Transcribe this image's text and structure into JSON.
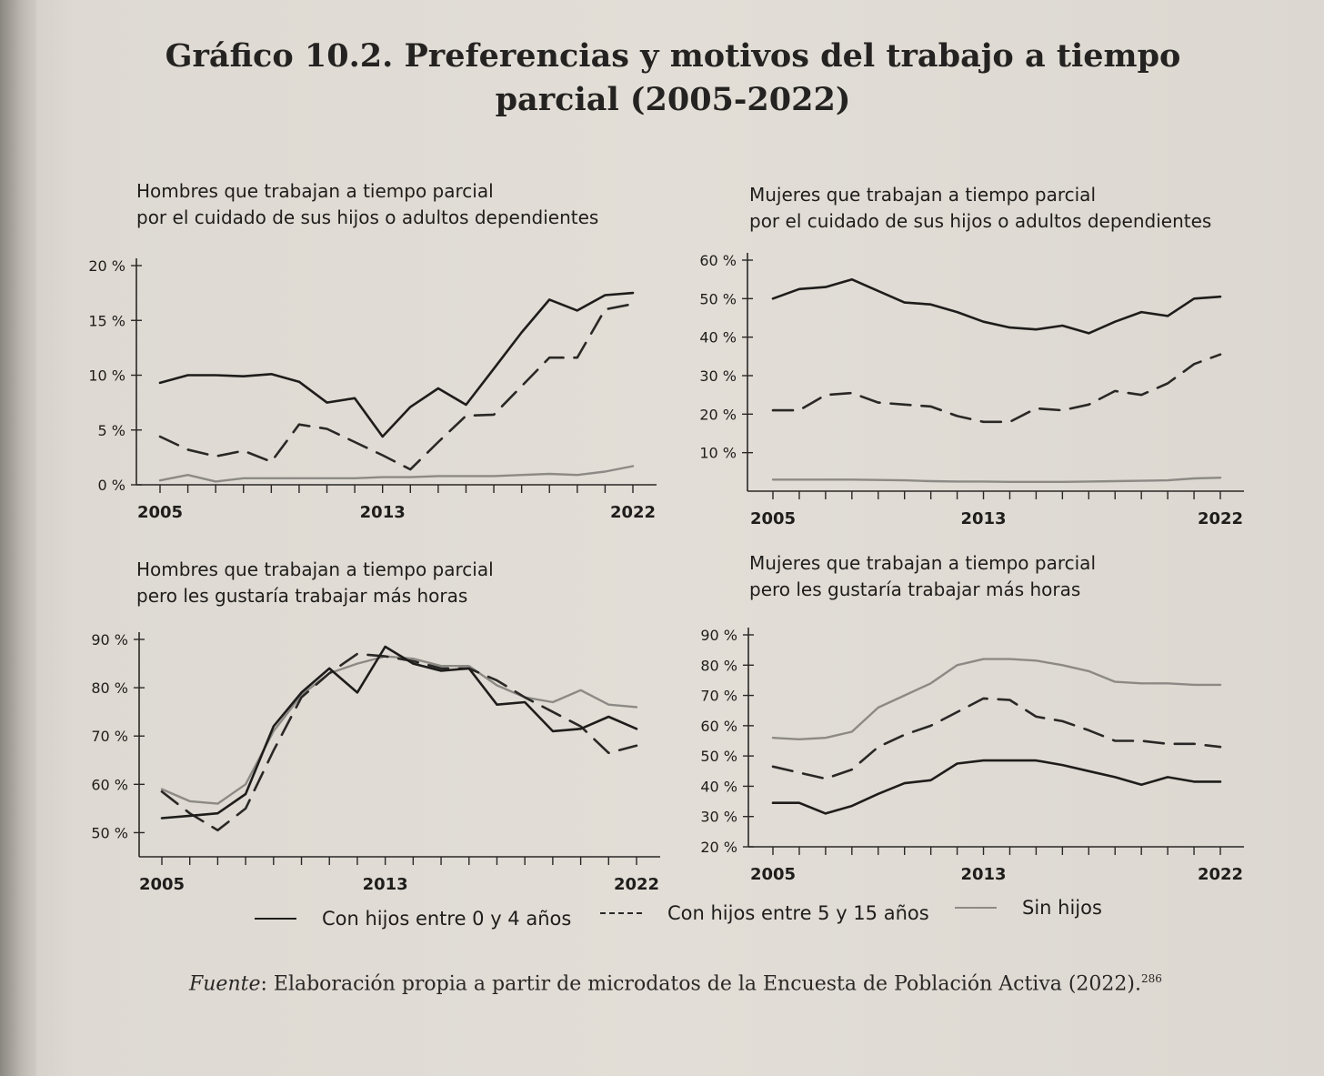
{
  "title": "Gráfico 10.2. Preferencias y motivos del trabajo a tiempo parcial (2005-2022)",
  "legend": {
    "s0": "Con hijos entre 0 y 4 años",
    "s1": "Con hijos entre 5 y 15 años",
    "s2": "Sin hijos"
  },
  "source": {
    "label": "Fuente",
    "text": ": Elaboración propia a partir de microdatos de la Encuesta de Población Activa (2022).",
    "note": "286"
  },
  "colors": {
    "s0": "#1f1d1b",
    "s1": "#2a2826",
    "s2": "#8d8a85"
  },
  "chart_data": [
    {
      "type": "line",
      "title": "Hombres que trabajan a tiempo parcial\npor el cuidado de sus hijos o adultos dependientes",
      "x_ticks": [
        "2005",
        "2013",
        "2022"
      ],
      "y_ticks": [
        "0 %",
        "5 %",
        "10 %",
        "15 %",
        "20 %"
      ],
      "ylim": [
        0,
        20
      ],
      "x": [
        2005,
        2006,
        2007,
        2008,
        2009,
        2010,
        2011,
        2012,
        2013,
        2014,
        2015,
        2016,
        2017,
        2018,
        2019,
        2020,
        2021,
        2022
      ],
      "series": [
        {
          "name": "Con hijos entre 0 y 4 años",
          "style": "solid",
          "values": [
            9.3,
            10.0,
            10.0,
            9.9,
            10.1,
            9.4,
            7.5,
            7.9,
            4.4,
            7.1,
            8.8,
            7.3,
            10.6,
            13.9,
            16.9,
            15.9,
            17.3,
            17.5
          ]
        },
        {
          "name": "Con hijos entre 5 y 15 años",
          "style": "dash",
          "values": [
            4.4,
            3.2,
            2.6,
            3.1,
            2.1,
            5.5,
            5.1,
            3.9,
            2.7,
            1.4,
            3.9,
            6.3,
            6.4,
            9.0,
            11.6,
            11.6,
            16.0,
            16.5
          ]
        },
        {
          "name": "Sin hijos",
          "style": "gray",
          "values": [
            0.4,
            0.9,
            0.3,
            0.6,
            0.6,
            0.6,
            0.6,
            0.6,
            0.7,
            0.7,
            0.8,
            0.8,
            0.8,
            0.9,
            1.0,
            0.9,
            1.2,
            1.7
          ]
        }
      ]
    },
    {
      "type": "line",
      "title": "Mujeres que trabajan a tiempo parcial\npor el cuidado de sus hijos o adultos dependientes",
      "x_ticks": [
        "2005",
        "2013",
        "2022"
      ],
      "y_ticks": [
        "10 %",
        "20 %",
        "30 %",
        "40 %",
        "50 %",
        "60 %"
      ],
      "ylim": [
        0,
        60
      ],
      "x": [
        2005,
        2006,
        2007,
        2008,
        2009,
        2010,
        2011,
        2012,
        2013,
        2014,
        2015,
        2016,
        2017,
        2018,
        2019,
        2020,
        2021,
        2022
      ],
      "series": [
        {
          "name": "Con hijos entre 0 y 4 años",
          "style": "solid",
          "values": [
            50.0,
            52.5,
            53.0,
            55.0,
            52.0,
            49.0,
            48.5,
            46.5,
            44.0,
            42.5,
            42.0,
            43.0,
            41.0,
            44.0,
            46.5,
            45.5,
            50.0,
            50.5
          ]
        },
        {
          "name": "Con hijos entre 5 y 15 años",
          "style": "dash",
          "values": [
            21.0,
            21.0,
            25.0,
            25.5,
            23.0,
            22.5,
            22.0,
            19.5,
            18.0,
            18.0,
            21.5,
            21.0,
            22.5,
            26.0,
            25.0,
            28.0,
            33.0,
            35.5
          ]
        },
        {
          "name": "Sin hijos",
          "style": "gray",
          "values": [
            3.0,
            3.0,
            3.0,
            3.0,
            2.9,
            2.8,
            2.6,
            2.5,
            2.5,
            2.4,
            2.4,
            2.4,
            2.5,
            2.6,
            2.7,
            2.8,
            3.3,
            3.5
          ]
        }
      ]
    },
    {
      "type": "line",
      "title": "Hombres que trabajan a tiempo parcial\npero les gustaría trabajar más horas",
      "x_ticks": [
        "2005",
        "2013",
        "2022"
      ],
      "y_ticks": [
        "50 %",
        "60 %",
        "70 %",
        "80 %",
        "90 %"
      ],
      "ylim": [
        45,
        90
      ],
      "x": [
        2005,
        2006,
        2007,
        2008,
        2009,
        2010,
        2011,
        2012,
        2013,
        2014,
        2015,
        2016,
        2017,
        2018,
        2019,
        2020,
        2021,
        2022
      ],
      "series": [
        {
          "name": "Con hijos entre 0 y 4 años",
          "style": "solid",
          "values": [
            53.0,
            53.5,
            54.0,
            58.0,
            72.0,
            79.0,
            84.0,
            79.0,
            88.5,
            85.0,
            83.5,
            84.0,
            76.5,
            77.0,
            71.0,
            71.5,
            74.0,
            71.5
          ]
        },
        {
          "name": "Con hijos entre 5 y 15 años",
          "style": "dash",
          "values": [
            58.5,
            54.0,
            50.5,
            55.0,
            67.0,
            78.0,
            83.0,
            87.0,
            86.5,
            85.5,
            84.0,
            84.0,
            81.5,
            78.0,
            75.0,
            72.0,
            66.5,
            68.0
          ]
        },
        {
          "name": "Sin hijos",
          "style": "gray",
          "values": [
            59.0,
            56.5,
            56.0,
            60.0,
            71.0,
            78.5,
            83.0,
            85.0,
            86.5,
            86.0,
            84.5,
            84.5,
            80.5,
            78.0,
            77.0,
            79.5,
            76.5,
            76.0
          ]
        }
      ]
    },
    {
      "type": "line",
      "title": "Mujeres que trabajan a tiempo parcial\npero les gustaría trabajar más horas",
      "x_ticks": [
        "2005",
        "2013",
        "2022"
      ],
      "y_ticks": [
        "20 %",
        "30 %",
        "40 %",
        "50 %",
        "60 %",
        "70 %",
        "80 %",
        "90 %"
      ],
      "ylim": [
        20,
        90
      ],
      "x": [
        2005,
        2006,
        2007,
        2008,
        2009,
        2010,
        2011,
        2012,
        2013,
        2014,
        2015,
        2016,
        2017,
        2018,
        2019,
        2020,
        2021,
        2022
      ],
      "series": [
        {
          "name": "Con hijos entre 0 y 4 años",
          "style": "solid",
          "values": [
            34.5,
            34.5,
            31.0,
            33.5,
            37.5,
            41.0,
            42.0,
            47.5,
            48.5,
            48.5,
            48.5,
            47.0,
            45.0,
            43.0,
            40.5,
            43.0,
            41.5,
            41.5
          ]
        },
        {
          "name": "Con hijos entre 5 y 15 años",
          "style": "dash",
          "values": [
            46.5,
            44.5,
            42.5,
            45.5,
            53.0,
            57.0,
            60.0,
            64.5,
            69.0,
            68.5,
            63.0,
            61.5,
            58.5,
            55.0,
            55.0,
            54.0,
            54.0,
            53.0
          ]
        },
        {
          "name": "Sin hijos",
          "style": "gray",
          "values": [
            56.0,
            55.5,
            56.0,
            58.0,
            66.0,
            70.0,
            74.0,
            80.0,
            82.0,
            82.0,
            81.5,
            80.0,
            78.0,
            74.5,
            74.0,
            74.0,
            73.5,
            73.5
          ]
        }
      ]
    }
  ]
}
